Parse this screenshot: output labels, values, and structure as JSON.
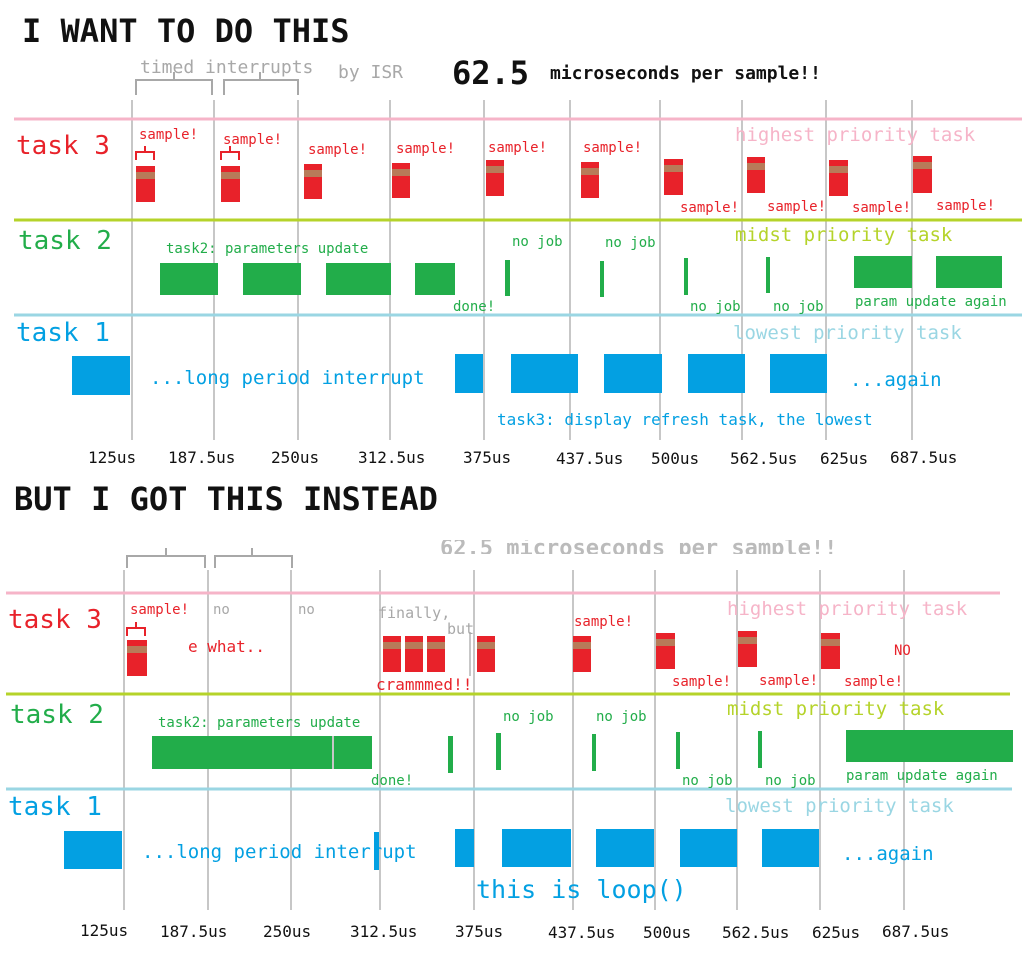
{
  "colors": {
    "task3": "#e8222a",
    "task3_band": "#b87b59",
    "task2": "#22ad4a",
    "task2_band": "#b5d32a",
    "task1": "#03a0e2",
    "task1_band": "#9ad6e3",
    "task3_line": "#f6b4c8",
    "grid": "#c7c7c7",
    "faded": "#a8a8a8",
    "text": "#111111"
  },
  "top": {
    "heading": "I WANT TO DO  THIS",
    "timed_interrupts": "timed interrupts",
    "by_isr": "by ISR",
    "rate_number": "62.5",
    "rate_text": "microseconds per sample!!",
    "task3_label": "task 3",
    "task3_caption": "highest priority task",
    "task2_label": "task 2",
    "task2_caption": "midst priority  task",
    "task1_label": "task 1",
    "task1_caption": "lowest priority  task",
    "sample": "sample!",
    "task2_params": "task2: parameters update",
    "no_job": "no job",
    "done": "done!",
    "param_again": "param update again",
    "long_interrupt": "...long period interrupt",
    "again": "...again",
    "display_refresh": "task3: display refresh task, the lowest",
    "ticks": [
      "125us",
      "187.5us",
      "250us",
      "312.5us",
      "375us",
      "437.5us",
      "500us",
      "562.5us",
      "625us",
      "687.5us"
    ]
  },
  "bottom": {
    "heading": "BUT I GOT THIS INSTEAD",
    "faded_header": "62.5 microseconds per sample!!",
    "task3_label": "task 3",
    "task3_caption": "highest priority task",
    "task2_label": "task 2",
    "task2_caption": "midst priority  task",
    "task1_label": "task 1",
    "task1_caption": "lowest priority  task",
    "sample": "sample!",
    "no": "no",
    "what": "e what..",
    "finally": "finally,",
    "but": "but",
    "crammed": "crammmed!!",
    "no_caps": "NO",
    "task2_params": "task2: parameters update",
    "no_job": "no job",
    "done": "done!",
    "param_again": "param update again",
    "long_interrupt": "...long period interrupt",
    "again": "...again",
    "loop": "this is loop()",
    "ticks": [
      "125us",
      "187.5us",
      "250us",
      "312.5us",
      "375us",
      "437.5us",
      "500us",
      "562.5us",
      "625us",
      "687.5us"
    ]
  }
}
